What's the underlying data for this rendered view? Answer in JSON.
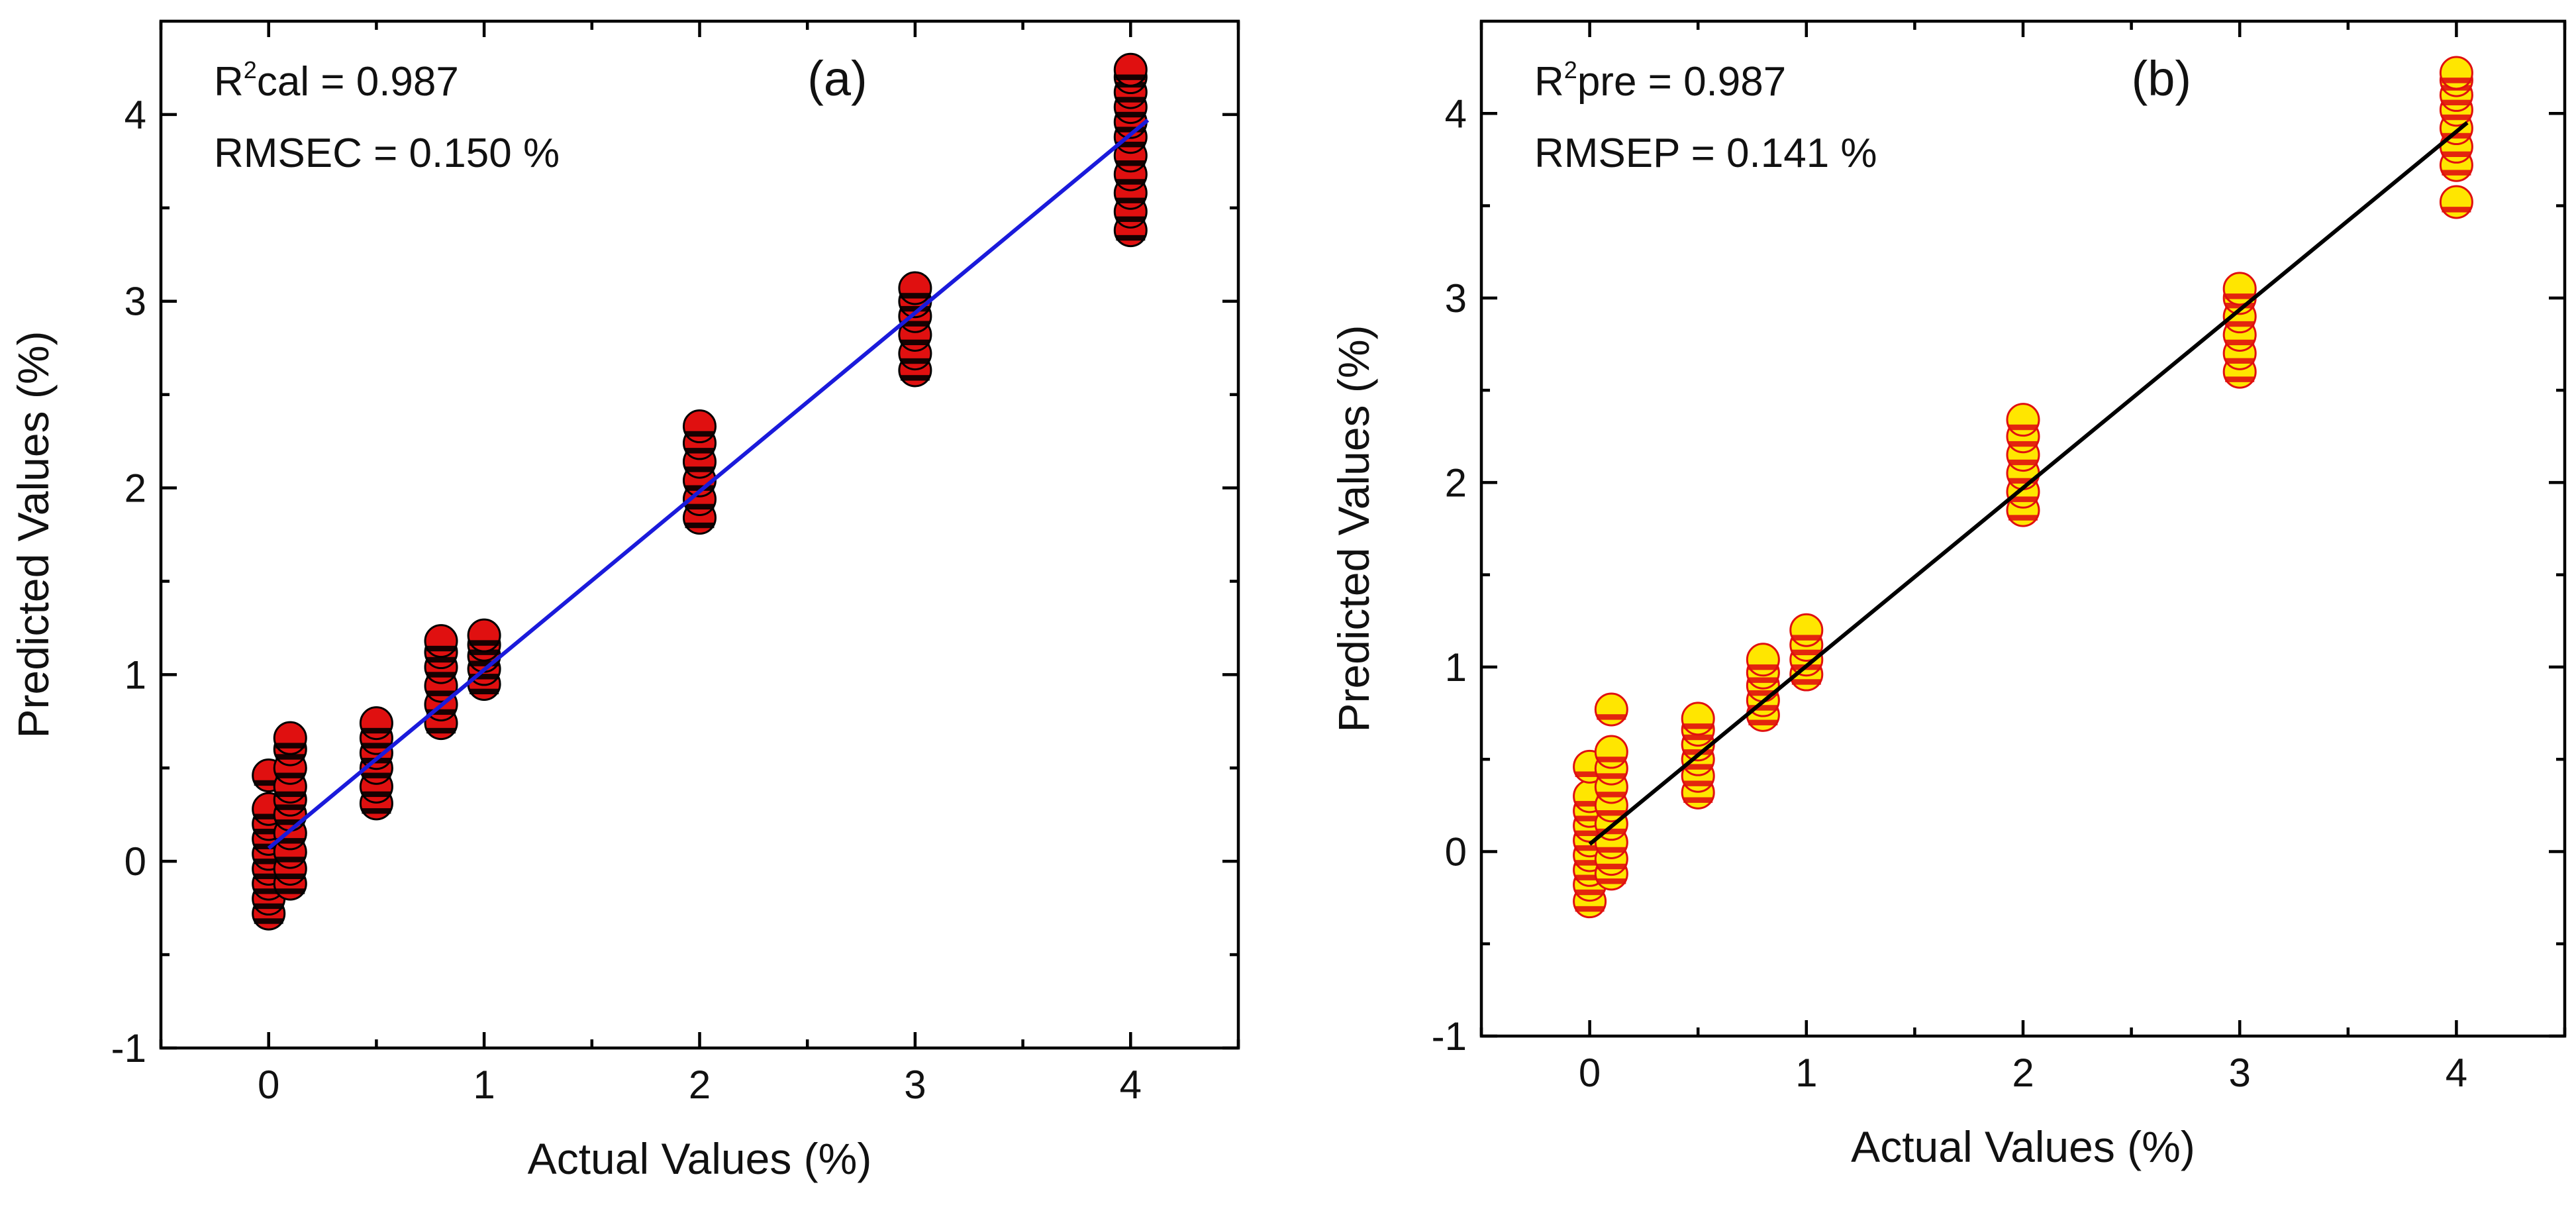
{
  "chart_data": [
    {
      "type": "scatter",
      "panel_label": "(a)",
      "xlabel": "Actual Values (%)",
      "ylabel": "Predicted Values (%)",
      "xlim": [
        -0.5,
        4.5
      ],
      "ylim": [
        -1,
        4.5
      ],
      "xticks": [
        "0",
        "1",
        "2",
        "3",
        "4"
      ],
      "yticks": [
        "-1",
        "0",
        "1",
        "2",
        "3",
        "4"
      ],
      "annotation": {
        "r2_prefix": "R",
        "r2_sup": "2",
        "r2_rest": "cal = 0.987",
        "rmse": "RMSEC = 0.150 %"
      },
      "marker": {
        "fill": "#e01010",
        "edge": "#000000",
        "stripe": "#000000"
      },
      "fit_line": {
        "color": "#1a1adb",
        "x": [
          0,
          4.08
        ],
        "y": [
          0.07,
          3.97
        ]
      },
      "groups": [
        {
          "x": 0,
          "y": [
            -0.28,
            -0.2,
            -0.12,
            -0.04,
            0.04,
            0.12,
            0.2,
            0.28,
            0.46
          ]
        },
        {
          "x": 0.1,
          "y": [
            -0.12,
            -0.04,
            0.05,
            0.15,
            0.25,
            0.33,
            0.4,
            0.5,
            0.6,
            0.66
          ]
        },
        {
          "x": 0.5,
          "y": [
            0.31,
            0.4,
            0.5,
            0.58,
            0.66,
            0.74
          ]
        },
        {
          "x": 0.8,
          "y": [
            0.74,
            0.84,
            0.94,
            1.04,
            1.12,
            1.18
          ]
        },
        {
          "x": 1,
          "y": [
            0.95,
            1.03,
            1.1,
            1.16,
            1.21
          ]
        },
        {
          "x": 2,
          "y": [
            1.84,
            1.94,
            2.04,
            2.14,
            2.24,
            2.33
          ]
        },
        {
          "x": 3,
          "y": [
            2.63,
            2.72,
            2.82,
            2.92,
            3.0,
            3.07
          ]
        },
        {
          "x": 4,
          "y": [
            3.38,
            3.48,
            3.58,
            3.68,
            3.78,
            3.88,
            3.96,
            4.04,
            4.12,
            4.2,
            4.24
          ]
        }
      ]
    },
    {
      "type": "scatter",
      "panel_label": "(b)",
      "xlabel": "Actual Values (%)",
      "ylabel": "Predicted Values (%)",
      "xlim": [
        -0.5,
        4.5
      ],
      "ylim": [
        -1,
        4.5
      ],
      "xticks": [
        "0",
        "1",
        "2",
        "3",
        "4"
      ],
      "yticks": [
        "-1",
        "0",
        "1",
        "2",
        "3",
        "4"
      ],
      "annotation": {
        "r2_prefix": "R",
        "r2_sup": "2",
        "r2_rest": "pre = 0.987",
        "rmse": "RMSEP = 0.141 %"
      },
      "marker": {
        "fill": "#ffe600",
        "edge": "#e01010",
        "stripe": "#e01010"
      },
      "fit_line": {
        "color": "#000000",
        "x": [
          0,
          4.05
        ],
        "y": [
          0.04,
          3.95
        ]
      },
      "groups": [
        {
          "x": 0,
          "y": [
            -0.27,
            -0.18,
            -0.1,
            -0.02,
            0.06,
            0.14,
            0.22,
            0.3,
            0.46
          ]
        },
        {
          "x": 0.1,
          "y": [
            -0.12,
            -0.04,
            0.05,
            0.15,
            0.25,
            0.35,
            0.45,
            0.54,
            0.77
          ]
        },
        {
          "x": 0.5,
          "y": [
            0.32,
            0.41,
            0.5,
            0.58,
            0.66,
            0.72
          ]
        },
        {
          "x": 0.8,
          "y": [
            0.74,
            0.82,
            0.9,
            0.97,
            1.04
          ]
        },
        {
          "x": 1,
          "y": [
            0.96,
            1.04,
            1.12,
            1.2
          ]
        },
        {
          "x": 2,
          "y": [
            1.85,
            1.95,
            2.05,
            2.15,
            2.25,
            2.34
          ]
        },
        {
          "x": 3,
          "y": [
            2.6,
            2.7,
            2.8,
            2.9,
            3.0,
            3.05
          ]
        },
        {
          "x": 4,
          "y": [
            3.52,
            3.72,
            3.82,
            3.92,
            4.02,
            4.1,
            4.18,
            4.22
          ]
        }
      ]
    }
  ]
}
